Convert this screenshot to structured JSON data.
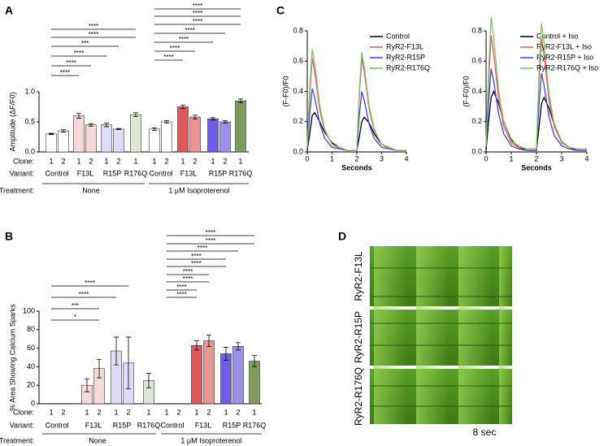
{
  "panel_labels": [
    "A",
    "B",
    "C",
    "D"
  ],
  "chart_data": [
    {
      "type": "bar",
      "ylabel": "Amplitude (ΔF/F0)",
      "ylim": [
        0,
        1
      ],
      "yticks": [
        {
          "value": 0,
          "label": "0.0"
        },
        0.5,
        {
          "value": 1,
          "label": "1.0"
        }
      ],
      "row_labels": [
        "Clone:",
        "Variant:",
        "Treatment:"
      ],
      "clones": [
        "1",
        "2",
        "1",
        "2",
        "1",
        "2",
        "1",
        "1",
        "2",
        "1",
        "2",
        "1",
        "2",
        "1"
      ],
      "variants": [
        "Control",
        "F13L",
        "R15P",
        "R176Q",
        "Control",
        "F13L",
        "R15P",
        "R176Q"
      ],
      "treatments": [
        "None",
        "1 μM Isoproterenol"
      ],
      "values": [
        0.3,
        0.35,
        0.6,
        0.45,
        0.45,
        0.38,
        0.62,
        0.38,
        0.5,
        0.75,
        0.58,
        0.55,
        0.5,
        0.85
      ],
      "errors": [
        0.01,
        0.02,
        0.04,
        0.02,
        0.03,
        0.01,
        0.03,
        0.02,
        0.02,
        0.03,
        0.03,
        0.02,
        0.02,
        0.03
      ],
      "colors": [
        "#ffffff",
        "#ffffff",
        "#f8d9d9",
        "#f8d9d9",
        "#dedcf8",
        "#dedcf8",
        "#dce8d2",
        "#ffffff",
        "#ffffff",
        "#dc5a5a",
        "#ea9494",
        "#6c5fe6",
        "#9a90f0",
        "#7d9c5e"
      ],
      "significance": [
        "****",
        "****",
        "****",
        "***",
        "****",
        "****",
        "****",
        "****",
        "****",
        "****",
        "****",
        "****",
        "****"
      ]
    },
    {
      "type": "bar",
      "ylabel": "% Area Showing Calcium Sparks",
      "ylim": [
        0,
        100
      ],
      "yticks": [
        0,
        20,
        40,
        60,
        80,
        100
      ],
      "row_labels": [
        "Clone:",
        "Variant:",
        "Treatment:"
      ],
      "clones": [
        "1",
        "2",
        "1",
        "2",
        "1",
        "2",
        "1",
        "1",
        "2",
        "1",
        "2",
        "1",
        "2",
        "1"
      ],
      "variants": [
        "Control",
        "F13L",
        "R15P",
        "R176Q",
        "Control",
        "F13L",
        "R15P",
        "R176Q"
      ],
      "treatments": [
        "None",
        "1 μM Isoproterenol"
      ],
      "values": [
        0,
        0,
        20,
        38,
        57,
        44,
        25,
        0,
        0,
        63,
        68,
        54,
        62,
        46
      ],
      "errors": [
        null,
        null,
        7,
        10,
        15,
        28,
        8,
        null,
        null,
        5,
        6,
        7,
        4,
        6
      ],
      "colors": [
        "#ffffff",
        "#ffffff",
        "#f8d9d9",
        "#f8d9d9",
        "#dedcf8",
        "#dedcf8",
        "#dce8d2",
        "#ffffff",
        "#ffffff",
        "#dc5a5a",
        "#ea9494",
        "#6c5fe6",
        "#9a90f0",
        "#7d9c5e"
      ],
      "significance": [
        "*",
        "***",
        "****",
        "****",
        "****",
        "****",
        "****",
        "****",
        "****",
        "****",
        "****",
        "****",
        "****"
      ]
    },
    {
      "type": "line",
      "xlabel": "Seconds",
      "ylabel": "(F-F0)/F0",
      "xlim": [
        0,
        4
      ],
      "xticks": [
        0,
        1,
        2,
        3,
        4
      ],
      "ylim": [
        0,
        0.8
      ],
      "yticks": [
        {
          "value": 0,
          "label": "0.0"
        },
        0.2,
        0.4,
        0.6,
        0.8
      ],
      "x": [
        0,
        0.1,
        0.2,
        0.3,
        0.5,
        0.7,
        1.0,
        1.3,
        1.6,
        2.0,
        2.1,
        2.2,
        2.3,
        2.5,
        2.7,
        3.0,
        3.3,
        3.6,
        4.0
      ],
      "series": [
        {
          "name": "Control",
          "color": "#000000",
          "values": [
            0.01,
            0.12,
            0.24,
            0.26,
            0.2,
            0.13,
            0.06,
            0.03,
            0.01,
            0.01,
            0.1,
            0.2,
            0.23,
            0.19,
            0.12,
            0.05,
            0.03,
            0.01,
            0.01
          ]
        },
        {
          "name": "RyR2-F13L",
          "color": "#e05a5a",
          "values": [
            0.03,
            0.37,
            0.62,
            0.53,
            0.28,
            0.14,
            0.05,
            0.02,
            0.01,
            0.01,
            0.37,
            0.62,
            0.53,
            0.28,
            0.14,
            0.05,
            0.02,
            0.01,
            0.01
          ]
        },
        {
          "name": "RyR2-R15P",
          "color": "#4a3fe0",
          "values": [
            0.02,
            0.25,
            0.42,
            0.36,
            0.19,
            0.09,
            0.03,
            0.02,
            0.01,
            0.01,
            0.24,
            0.4,
            0.34,
            0.18,
            0.09,
            0.03,
            0.02,
            0.01,
            0.01
          ]
        },
        {
          "name": "RyR2-R176Q",
          "color": "#7fbf6a",
          "values": [
            0.03,
            0.41,
            0.68,
            0.58,
            0.31,
            0.15,
            0.05,
            0.03,
            0.01,
            0.01,
            0.4,
            0.66,
            0.56,
            0.3,
            0.15,
            0.05,
            0.03,
            0.01,
            0.01
          ]
        }
      ]
    },
    {
      "type": "line",
      "xlabel": "Seconds",
      "ylabel": "(F-F0)/F0",
      "xlim": [
        0,
        4
      ],
      "xticks": [
        0,
        1,
        2,
        3,
        4
      ],
      "ylim": [
        0,
        0.8
      ],
      "yticks": [
        {
          "value": 0,
          "label": "0.0"
        },
        0.2,
        0.4,
        0.6,
        0.8
      ],
      "x": [
        0,
        0.1,
        0.2,
        0.3,
        0.5,
        0.7,
        1.0,
        1.3,
        1.6,
        2.0,
        2.1,
        2.2,
        2.3,
        2.5,
        2.7,
        3.0,
        3.3,
        3.6,
        4.0
      ],
      "series": [
        {
          "name": "Control + Iso",
          "color": "#000000",
          "values": [
            0.01,
            0.2,
            0.36,
            0.4,
            0.32,
            0.2,
            0.08,
            0.03,
            0.01,
            0.01,
            0.16,
            0.32,
            0.36,
            0.29,
            0.18,
            0.07,
            0.03,
            0.01,
            0.01
          ]
        },
        {
          "name": "RyR2-F13L + Iso",
          "color": "#e05a5a",
          "values": [
            0.04,
            0.46,
            0.77,
            0.65,
            0.35,
            0.17,
            0.06,
            0.03,
            0.02,
            0.02,
            0.45,
            0.75,
            0.64,
            0.34,
            0.17,
            0.06,
            0.03,
            0.02,
            0.02
          ]
        },
        {
          "name": "RyR2-R15P + Iso",
          "color": "#4a3fe0",
          "values": [
            0.03,
            0.33,
            0.55,
            0.47,
            0.25,
            0.12,
            0.04,
            0.02,
            0.01,
            0.01,
            0.31,
            0.52,
            0.44,
            0.23,
            0.11,
            0.04,
            0.02,
            0.01,
            0.01
          ]
        },
        {
          "name": "RyR2-R176Q + Iso",
          "color": "#7fbf6a",
          "values": [
            0.04,
            0.53,
            0.89,
            0.76,
            0.4,
            0.2,
            0.07,
            0.04,
            0.02,
            0.02,
            0.51,
            0.85,
            0.72,
            0.38,
            0.19,
            0.07,
            0.03,
            0.02,
            0.02
          ]
        }
      ]
    }
  ],
  "image_panel": {
    "rows": [
      "RyR2-F13L",
      "RyR2-R15P",
      "RyR2-R176Q"
    ],
    "scale_bar": "8 sec"
  }
}
